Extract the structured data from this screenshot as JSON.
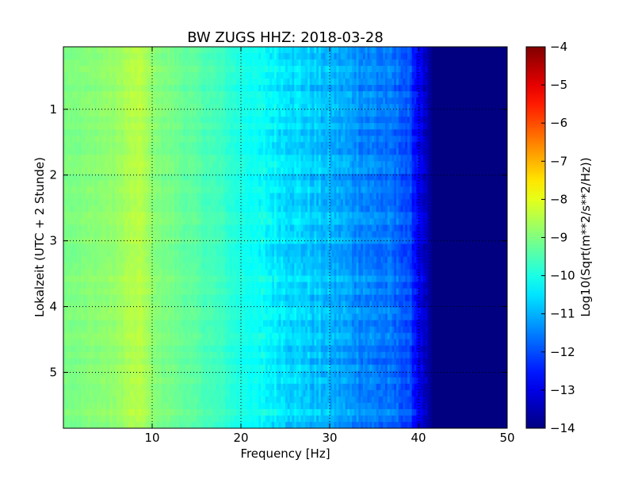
{
  "chart_data": {
    "type": "heatmap",
    "title": "BW ZUGS HHZ: 2018-03-28",
    "xlabel": "Frequency [Hz]",
    "ylabel": "Lokalzeit (UTC + 2 Stunde)",
    "xlim": [
      0,
      50
    ],
    "ylim": [
      0.05,
      5.85
    ],
    "y_inverted": true,
    "x_ticks": [
      10,
      20,
      30,
      40,
      50
    ],
    "x_tick_labels": [
      "10",
      "20",
      "30",
      "40",
      "50"
    ],
    "y_ticks": [
      1,
      2,
      3,
      4,
      5
    ],
    "y_tick_labels": [
      "1",
      "2",
      "3",
      "4",
      "5"
    ],
    "grid": true,
    "colormap": "jet",
    "colorbar": {
      "label": "Log10(Sqrt(m**2/s**2/Hz))",
      "range": [
        -14,
        -4
      ],
      "ticks": [
        -4,
        -5,
        -6,
        -7,
        -8,
        -9,
        -10,
        -11,
        -12,
        -13,
        -14
      ],
      "tick_labels": [
        "−4",
        "−5",
        "−6",
        "−7",
        "−8",
        "−9",
        "−10",
        "−11",
        "−12",
        "−13",
        "−14"
      ]
    },
    "frequency_profile": {
      "frequency_hz": [
        0,
        2,
        4,
        6,
        7,
        8,
        9,
        10,
        12,
        14,
        16,
        18,
        20,
        22,
        24,
        26,
        28,
        30,
        32,
        34,
        36,
        38,
        39,
        40,
        41,
        42,
        45,
        50
      ],
      "value": [
        -9.0,
        -9.0,
        -8.9,
        -8.8,
        -8.6,
        -8.5,
        -8.5,
        -8.9,
        -9.1,
        -9.3,
        -9.5,
        -9.7,
        -10.0,
        -10.2,
        -10.4,
        -10.6,
        -10.8,
        -11.0,
        -11.2,
        -11.4,
        -11.6,
        -11.8,
        -12.1,
        -12.8,
        -13.6,
        -14.0,
        -14.0,
        -14.0
      ]
    }
  }
}
